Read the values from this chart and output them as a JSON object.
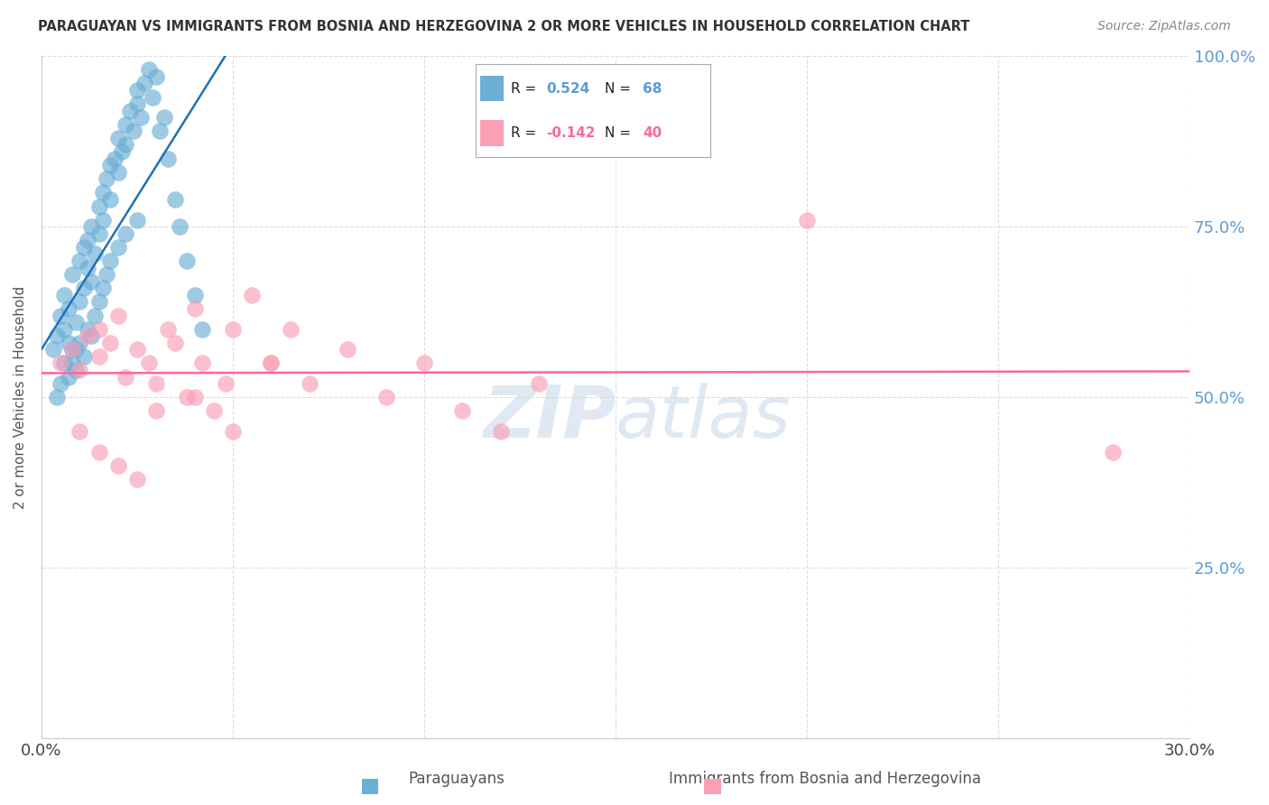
{
  "title": "PARAGUAYAN VS IMMIGRANTS FROM BOSNIA AND HERZEGOVINA 2 OR MORE VEHICLES IN HOUSEHOLD CORRELATION CHART",
  "source": "Source: ZipAtlas.com",
  "ylabel": "2 or more Vehicles in Household",
  "legend_label1": "Paraguayans",
  "legend_label2": "Immigrants from Bosnia and Herzegovina",
  "r1": 0.524,
  "n1": 68,
  "r2": -0.142,
  "n2": 40,
  "xmin": 0.0,
  "xmax": 0.3,
  "ymin": 0.0,
  "ymax": 1.0,
  "color1": "#6baed6",
  "color2": "#fa9fb5",
  "trendline1_color": "#2171b5",
  "trendline2_color": "#f768a1",
  "watermark_color": "#c8d8e8",
  "paraguayans_x": [
    0.003,
    0.004,
    0.005,
    0.006,
    0.006,
    0.007,
    0.007,
    0.008,
    0.008,
    0.009,
    0.009,
    0.01,
    0.01,
    0.011,
    0.011,
    0.012,
    0.012,
    0.013,
    0.013,
    0.014,
    0.015,
    0.015,
    0.016,
    0.016,
    0.017,
    0.018,
    0.018,
    0.019,
    0.02,
    0.02,
    0.021,
    0.022,
    0.022,
    0.023,
    0.024,
    0.025,
    0.025,
    0.026,
    0.027,
    0.028,
    0.029,
    0.03,
    0.031,
    0.032,
    0.033,
    0.035,
    0.036,
    0.038,
    0.04,
    0.042,
    0.004,
    0.005,
    0.006,
    0.007,
    0.008,
    0.009,
    0.01,
    0.011,
    0.012,
    0.013,
    0.014,
    0.015,
    0.016,
    0.017,
    0.018,
    0.02,
    0.022,
    0.025
  ],
  "paraguayans_y": [
    0.57,
    0.59,
    0.62,
    0.6,
    0.65,
    0.58,
    0.63,
    0.55,
    0.68,
    0.57,
    0.61,
    0.64,
    0.7,
    0.66,
    0.72,
    0.69,
    0.73,
    0.67,
    0.75,
    0.71,
    0.74,
    0.78,
    0.76,
    0.8,
    0.82,
    0.79,
    0.84,
    0.85,
    0.88,
    0.83,
    0.86,
    0.9,
    0.87,
    0.92,
    0.89,
    0.93,
    0.95,
    0.91,
    0.96,
    0.98,
    0.94,
    0.97,
    0.89,
    0.91,
    0.85,
    0.79,
    0.75,
    0.7,
    0.65,
    0.6,
    0.5,
    0.52,
    0.55,
    0.53,
    0.57,
    0.54,
    0.58,
    0.56,
    0.6,
    0.59,
    0.62,
    0.64,
    0.66,
    0.68,
    0.7,
    0.72,
    0.74,
    0.76
  ],
  "bosnian_x": [
    0.005,
    0.008,
    0.01,
    0.012,
    0.015,
    0.015,
    0.018,
    0.02,
    0.022,
    0.025,
    0.028,
    0.03,
    0.033,
    0.035,
    0.038,
    0.04,
    0.042,
    0.045,
    0.048,
    0.05,
    0.055,
    0.06,
    0.065,
    0.07,
    0.08,
    0.09,
    0.1,
    0.11,
    0.12,
    0.13,
    0.01,
    0.015,
    0.02,
    0.025,
    0.03,
    0.04,
    0.05,
    0.06,
    0.2,
    0.28
  ],
  "bosnian_y": [
    0.55,
    0.57,
    0.54,
    0.59,
    0.56,
    0.6,
    0.58,
    0.62,
    0.53,
    0.57,
    0.55,
    0.52,
    0.6,
    0.58,
    0.5,
    0.63,
    0.55,
    0.48,
    0.52,
    0.6,
    0.65,
    0.55,
    0.6,
    0.52,
    0.57,
    0.5,
    0.55,
    0.48,
    0.45,
    0.52,
    0.45,
    0.42,
    0.4,
    0.38,
    0.48,
    0.5,
    0.45,
    0.55,
    0.76,
    0.42
  ]
}
